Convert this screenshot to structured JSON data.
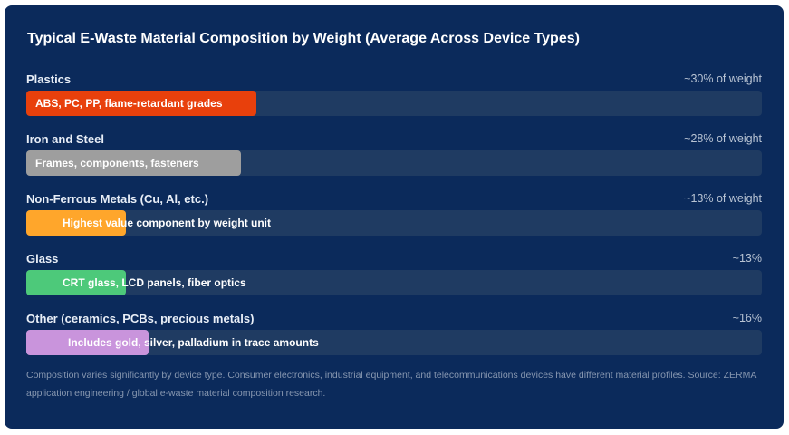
{
  "chart_data": {
    "type": "bar",
    "orientation": "horizontal",
    "title": "Typical E-Waste Material Composition by Weight (Average Across Device Types)",
    "categories": [
      "Plastics",
      "Iron and Steel",
      "Non-Ferrous Metals (Cu, Al, etc.)",
      "Glass",
      "Other (ceramics, PCBs, precious metals)"
    ],
    "values": [
      30,
      28,
      13,
      13,
      16
    ],
    "value_labels": [
      "~30% of weight",
      "~28% of weight",
      "~13% of weight",
      "~13%",
      "~16%"
    ],
    "bar_labels": [
      "ABS, PC, PP, flame-retardant grades",
      "Frames, components, fasteners",
      "Highest value component by weight unit",
      "CRT glass, LCD panels, fiber optics",
      "Includes gold, silver, palladium in trace amounts"
    ],
    "colors": [
      "#e8400c",
      "#9e9e9e",
      "#ffa62b",
      "#4dc97a",
      "#c994dc"
    ],
    "xlim": [
      0,
      96
    ],
    "grid": false,
    "legend": "none"
  },
  "footnote": "Composition varies significantly by device type. Consumer electronics, industrial equipment, and telecommunications devices have different material profiles. Source: ZERMA application engineering / global e-waste material composition research."
}
